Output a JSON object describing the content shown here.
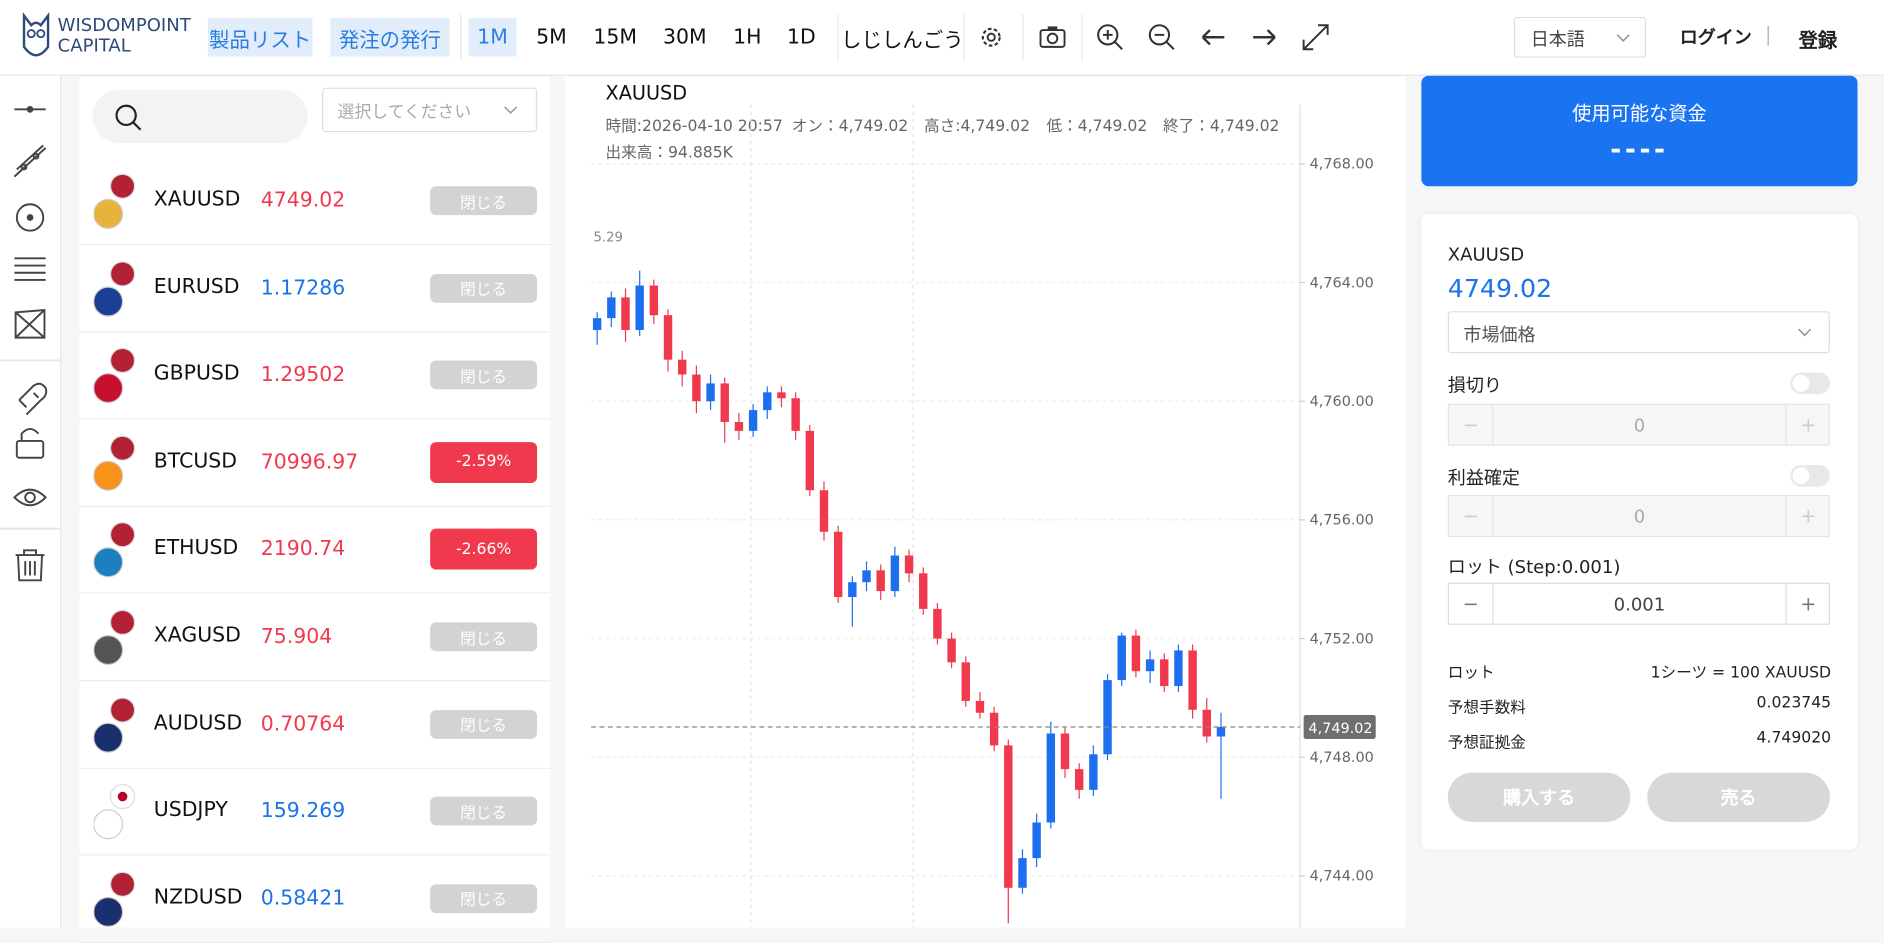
{
  "header": {
    "logo": [
      "WISDOMPOINT",
      "CAPITAL"
    ],
    "tabs": [
      "製品リスト",
      "発注の発行"
    ],
    "timeframes": [
      "1M",
      "5M",
      "15M",
      "30M",
      "1H",
      "1D"
    ],
    "indicator": "しじしんごう",
    "language": "日本語",
    "login": "ログイン",
    "separator": "|",
    "register": "登録"
  },
  "watchlist": {
    "select_placeholder": "選択してください",
    "items": [
      {
        "symbol": "XAUUSD",
        "price": 4749.02,
        "price_color": "#f0394d",
        "badge": "閉じる",
        "badge_color": "#d3d3d3"
      },
      {
        "symbol": "EURUSD",
        "price": 1.17286,
        "price_color": "#1a73e8",
        "badge": "閉じる",
        "badge_color": "#d3d3d3"
      },
      {
        "symbol": "GBPUSD",
        "price": 1.29502,
        "price_color": "#f0394d",
        "badge": "閉じる",
        "badge_color": "#d3d3d3"
      },
      {
        "symbol": "BTCUSD",
        "price": 70996.97,
        "price_color": "#f0394d",
        "badge": "-2.59%",
        "badge_color": "#f0394d"
      },
      {
        "symbol": "ETHUSD",
        "price": 2190.74,
        "price_color": "#f0394d",
        "badge": "-2.66%",
        "badge_color": "#f0394d"
      },
      {
        "symbol": "XAGUSD",
        "price": 75.904,
        "price_color": "#f0394d",
        "badge": "閉じる",
        "badge_color": "#d3d3d3"
      },
      {
        "symbol": "AUDUSD",
        "price": 0.70764,
        "price_color": "#f0394d",
        "badge": "閉じる",
        "badge_color": "#d3d3d3"
      },
      {
        "symbol": "USDJPY",
        "price": 159.269,
        "price_color": "#1a73e8",
        "badge": "閉じる",
        "badge_color": "#d3d3d3"
      },
      {
        "symbol": "NZDUSD",
        "price": 0.58421,
        "price_color": "#1a73e8",
        "badge": "閉じる",
        "badge_color": "#d3d3d3"
      }
    ]
  },
  "chart": {
    "type": "candlestick",
    "symbol": "XAUUSD",
    "info": [
      "時間:2026-04-10 20:57",
      "オン：4,749.02",
      "高さ:4,749.02",
      "低：4,749.02",
      "終了：4,749.02"
    ],
    "volume": "出来高：94.885K",
    "annotation": "5.29",
    "up_color": "#1e6ff0",
    "down_color": "#f0394d",
    "grid": true,
    "ylim": [
      4742.3,
      4770.0
    ],
    "yticks": [
      {
        "value": 4744,
        "label": "4,744.00"
      },
      {
        "value": 4748,
        "label": "4,748.00"
      },
      {
        "value": 4752,
        "label": "4,752.00"
      },
      {
        "value": 4756,
        "label": "4,756.00"
      },
      {
        "value": 4760,
        "label": "4,760.00"
      },
      {
        "value": 4764,
        "label": "4,764.00"
      },
      {
        "value": 4768,
        "label": "4,768.00"
      }
    ],
    "last_price": {
      "value": 4749.02,
      "label": "4,749.02"
    },
    "candles": [
      [
        4762.4,
        4763.0,
        4761.9,
        4762.8
      ],
      [
        4762.8,
        4763.7,
        4762.5,
        4763.5
      ],
      [
        4763.5,
        4763.8,
        4762.0,
        4762.4
      ],
      [
        4762.4,
        4764.4,
        4762.2,
        4763.9
      ],
      [
        4763.9,
        4764.1,
        4762.6,
        4762.9
      ],
      [
        4762.9,
        4763.1,
        4761.0,
        4761.4
      ],
      [
        4761.4,
        4761.7,
        4760.5,
        4760.9
      ],
      [
        4760.9,
        4761.2,
        4759.6,
        4760.0
      ],
      [
        4760.0,
        4760.9,
        4759.7,
        4760.6
      ],
      [
        4760.6,
        4760.8,
        4758.6,
        4759.3
      ],
      [
        4759.3,
        4759.6,
        4758.7,
        4759.0
      ],
      [
        4759.0,
        4759.9,
        4758.8,
        4759.7
      ],
      [
        4759.7,
        4760.5,
        4759.4,
        4760.3
      ],
      [
        4760.3,
        4760.5,
        4759.8,
        4760.1
      ],
      [
        4760.1,
        4760.3,
        4758.7,
        4759.0
      ],
      [
        4759.0,
        4759.2,
        4756.8,
        4757.0
      ],
      [
        4757.0,
        4757.3,
        4755.3,
        4755.6
      ],
      [
        4755.6,
        4755.8,
        4753.2,
        4753.4
      ],
      [
        4753.4,
        4754.1,
        4752.4,
        4753.9
      ],
      [
        4753.9,
        4754.6,
        4753.6,
        4754.3
      ],
      [
        4754.3,
        4754.5,
        4753.3,
        4753.6
      ],
      [
        4753.6,
        4755.1,
        4753.4,
        4754.8
      ],
      [
        4754.8,
        4755.0,
        4753.9,
        4754.2
      ],
      [
        4754.2,
        4754.4,
        4752.8,
        4753.0
      ],
      [
        4753.0,
        4753.2,
        4751.8,
        4752.0
      ],
      [
        4752.0,
        4752.2,
        4751.0,
        4751.2
      ],
      [
        4751.2,
        4751.4,
        4749.7,
        4749.9
      ],
      [
        4749.9,
        4750.2,
        4749.3,
        4749.5
      ],
      [
        4749.5,
        4749.7,
        4748.2,
        4748.4
      ],
      [
        4748.4,
        4748.6,
        4742.4,
        4743.6
      ],
      [
        4743.6,
        4744.9,
        4743.4,
        4744.6
      ],
      [
        4744.6,
        4746.1,
        4744.3,
        4745.8
      ],
      [
        4745.8,
        4749.2,
        4745.6,
        4748.8
      ],
      [
        4748.8,
        4749.0,
        4747.3,
        4747.6
      ],
      [
        4747.6,
        4747.8,
        4746.6,
        4746.9
      ],
      [
        4746.9,
        4748.4,
        4746.7,
        4748.1
      ],
      [
        4748.1,
        4750.8,
        4747.9,
        4750.6
      ],
      [
        4750.6,
        4752.2,
        4750.4,
        4752.1
      ],
      [
        4752.1,
        4752.3,
        4750.7,
        4750.9
      ],
      [
        4750.9,
        4751.6,
        4750.5,
        4751.3
      ],
      [
        4751.3,
        4751.5,
        4750.2,
        4750.4
      ],
      [
        4750.4,
        4751.8,
        4750.2,
        4751.6
      ],
      [
        4751.6,
        4751.8,
        4749.3,
        4749.6
      ],
      [
        4749.6,
        4750.0,
        4748.5,
        4748.7
      ],
      [
        4748.7,
        4749.5,
        4746.6,
        4749.02
      ]
    ]
  },
  "order_panel": {
    "funds_title": "使用可能な資金",
    "funds_value": "----",
    "symbol": "XAUUSD",
    "price": 4749.02,
    "order_type": "市場価格",
    "stop_loss": {
      "label": "損切り",
      "value": "0"
    },
    "take_profit": {
      "label": "利益確定",
      "value": "0"
    },
    "lot": {
      "label": "ロット (Step:0.001)",
      "value": "0.001"
    },
    "minus": "−",
    "plus": "+",
    "rows": [
      [
        "ロット",
        "1シーツ = 100 XAUUSD"
      ],
      [
        "予想手数料",
        "0.023745"
      ],
      [
        "予想証拠金",
        "4.749020"
      ]
    ],
    "buy": "購入する",
    "sell": "売る"
  }
}
